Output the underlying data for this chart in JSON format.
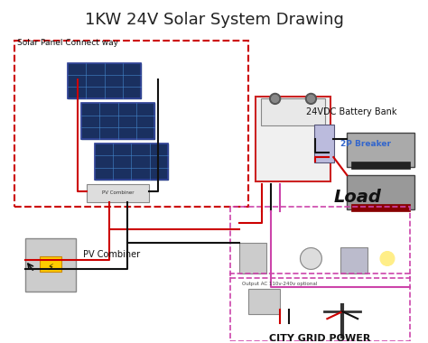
{
  "title": "1KW 24V Solar System Drawing",
  "bg_color": "#ffffff",
  "title_fontsize": 13,
  "components": {
    "solar_panel_label": "Solar Panel Connect way",
    "pv_combiner_label": "PV Combiner",
    "battery_label": "24VDC Battery Bank",
    "breaker_label": "2P Breaker",
    "load_label": "Load",
    "output_label": "Output AC 110v-240v optional",
    "city_grid_label": "CITY GRID POWER"
  },
  "colors": {
    "red_wire": "#cc0000",
    "black_wire": "#111111",
    "blue_wire": "#3366cc",
    "pink_wire": "#cc44aa",
    "solar_blue": "#2244aa",
    "solar_dark": "#1a1a2e",
    "panel_border": "#cc0000",
    "dashed_border": "#cc0000",
    "load_dashed": "#cc44aa",
    "city_dashed": "#cc44aa",
    "battery_gray": "#888888",
    "battery_dark": "#222222",
    "box_gray": "#aaaaaa",
    "inverter_red": "#cc2222"
  }
}
